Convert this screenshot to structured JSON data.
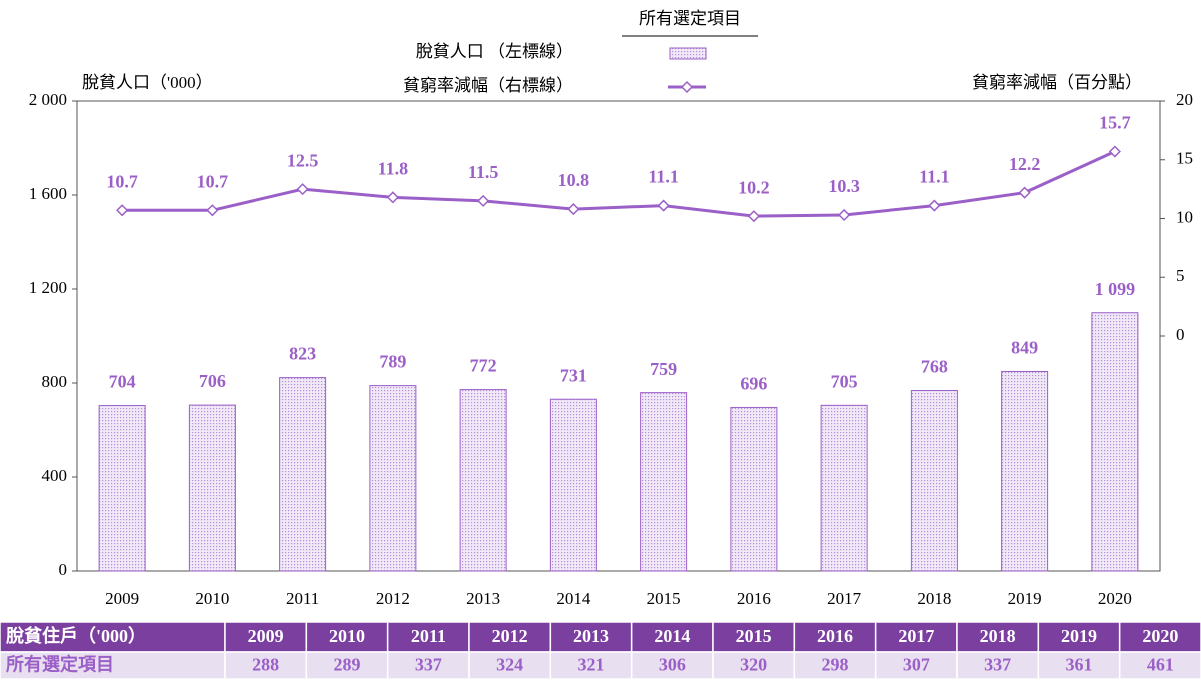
{
  "chart_data": {
    "type": "bar",
    "legend_title": "所有選定項目",
    "y_label": "脫貧人口（'000）",
    "y2_label": "貧窮率減幅（百分點）",
    "categories": [
      "2009",
      "2010",
      "2011",
      "2012",
      "2013",
      "2014",
      "2015",
      "2016",
      "2017",
      "2018",
      "2019",
      "2020"
    ],
    "series": [
      {
        "name": "脫貧人口 （左標線）",
        "type": "bar",
        "color": "#9b5fc8",
        "values": [
          704,
          706,
          823,
          789,
          772,
          731,
          759,
          696,
          705,
          768,
          849,
          1099
        ],
        "value_labels": [
          "704",
          "706",
          "823",
          "789",
          "772",
          "731",
          "759",
          "696",
          "705",
          "768",
          "849",
          "1 099"
        ]
      },
      {
        "name": "貧窮率減幅（右標線）",
        "type": "line",
        "axis": "y2",
        "color": "#9b5fc8",
        "values": [
          10.7,
          10.7,
          12.5,
          11.8,
          11.5,
          10.8,
          11.1,
          10.2,
          10.3,
          11.1,
          12.2,
          15.7
        ]
      }
    ],
    "ylim": [
      0,
      2000
    ],
    "yticks": [
      0,
      400,
      800,
      {
        "value": 1200,
        "label": "1 200"
      },
      {
        "value": 1600,
        "label": "1 600"
      },
      {
        "value": 2000,
        "label": "2 000"
      }
    ],
    "y2lim": [
      -20,
      20
    ],
    "y2ticks": [
      0,
      5,
      10,
      15,
      20
    ]
  },
  "table": {
    "header": [
      "脫貧住戶（'000）",
      "2009",
      "2010",
      "2011",
      "2012",
      "2013",
      "2014",
      "2015",
      "2016",
      "2017",
      "2018",
      "2019",
      "2020"
    ],
    "rows": [
      [
        "所有選定項目",
        "288",
        "289",
        "337",
        "324",
        "321",
        "306",
        "320",
        "298",
        "307",
        "337",
        "361",
        "461"
      ]
    ]
  }
}
